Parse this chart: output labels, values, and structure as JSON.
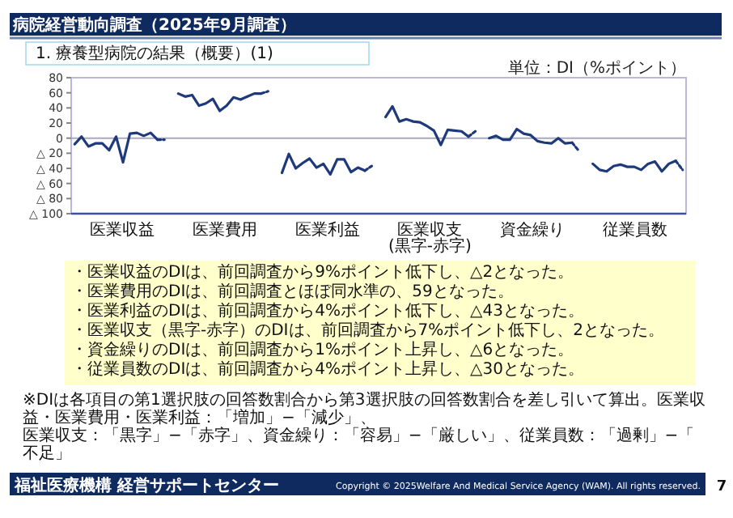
{
  "chart_data": [
    {
      "type": "line",
      "title": "病院経営動向調査（2025年9月調査）",
      "subtitle": "1. 療養型病院の結果（概要）(1)",
      "annotations": [
        "単位：DI（%ポイント）",
        "医業収益",
        "医業費用",
        "医業利益",
        "医業収支\n(黒字-赤字)",
        "資金繰り",
        "従業員数"
      ],
      "categories": [
        null,
        null,
        null,
        null,
        null,
        null,
        null,
        null,
        null,
        null,
        null,
        null,
        null,
        null,
        null,
        null,
        null,
        null,
        null,
        null,
        null,
        null,
        null,
        null,
        null,
        null,
        null,
        null,
        null,
        null,
        null,
        null,
        null,
        null,
        null,
        null,
        null,
        null,
        null,
        null,
        null,
        null,
        null,
        null,
        null,
        null,
        null,
        null,
        null,
        null,
        null,
        null,
        null,
        null,
        null,
        null,
        null,
        null,
        null,
        null,
        null,
        null,
        null,
        null,
        null,
        null,
        null,
        null,
        null,
        null,
        null,
        null,
        null,
        null,
        null,
        null,
        null,
        null,
        null,
        null,
        null,
        null,
        null,
        null,
        null,
        null,
        null,
        null,
        null
      ],
      "ylim": [
        -100,
        80
      ],
      "yticks": [
        {
          "value": -100,
          "label": "△ 100"
        },
        {
          "value": -80,
          "label": "△ 80"
        },
        {
          "value": -60,
          "label": "△ 60"
        },
        {
          "value": -40,
          "label": "△ 40"
        },
        {
          "value": -20,
          "label": "△ 20"
        },
        0,
        20,
        40,
        60,
        80
      ],
      "tick_labels": "y",
      "ref_lines": [
        {
          "axis": "y",
          "value": 0,
          "color": "#a8a8c0"
        }
      ],
      "series": [
        {
          "color": "#1f3a7a",
          "values": [
            -8,
            2,
            -11,
            -7,
            -7,
            -16,
            2,
            -32,
            6,
            7,
            3,
            7,
            -2,
            null,
            null,
            null,
            null,
            null,
            null,
            null,
            null,
            null,
            null,
            null,
            null,
            null,
            null,
            null,
            null,
            null,
            null,
            null,
            null,
            null,
            null,
            null,
            null,
            null,
            null,
            null,
            null,
            null,
            null,
            null,
            null,
            null,
            null,
            null,
            null,
            null,
            null,
            null,
            null,
            null,
            null,
            null,
            null,
            null,
            null,
            null,
            null,
            null,
            null,
            null,
            null,
            null,
            null,
            null,
            null,
            null,
            null,
            null,
            null,
            null,
            null,
            null,
            null,
            null,
            null,
            null,
            null,
            null,
            null,
            null,
            null,
            null,
            null,
            null,
            null
          ]
        },
        {
          "color": "#1f3a7a",
          "line_style": "dashed",
          "values": [
            null,
            null,
            null,
            null,
            null,
            null,
            null,
            null,
            null,
            null,
            null,
            null,
            -2,
            -2,
            null,
            null,
            null,
            null,
            null,
            null,
            null,
            null,
            null,
            null,
            null,
            null,
            null,
            null,
            null,
            null,
            null,
            null,
            null,
            null,
            null,
            null,
            null,
            null,
            null,
            null,
            null,
            null,
            null,
            null,
            null,
            null,
            null,
            null,
            null,
            null,
            null,
            null,
            null,
            null,
            null,
            null,
            null,
            null,
            null,
            null,
            null,
            null,
            null,
            null,
            null,
            null,
            null,
            null,
            null,
            null,
            null,
            null,
            null,
            null,
            null,
            null,
            null,
            null,
            null,
            null,
            null,
            null,
            null,
            null,
            null,
            null,
            null,
            null,
            null
          ]
        },
        {
          "color": "#1f3a7a",
          "values": [
            null,
            null,
            null,
            null,
            null,
            null,
            null,
            null,
            null,
            null,
            null,
            null,
            null,
            null,
            null,
            59,
            55,
            57,
            43,
            46,
            52,
            36,
            43,
            54,
            51,
            55,
            59,
            59,
            null,
            null,
            null,
            null,
            null,
            null,
            null,
            null,
            null,
            null,
            null,
            null,
            null,
            null,
            null,
            null,
            null,
            null,
            null,
            null,
            null,
            null,
            null,
            null,
            null,
            null,
            null,
            null,
            null,
            null,
            null,
            null,
            null,
            null,
            null,
            null,
            null,
            null,
            null,
            null,
            null,
            null,
            null,
            null,
            null,
            null,
            null,
            null,
            null,
            null,
            null,
            null,
            null,
            null,
            null,
            null,
            null,
            null,
            null,
            null,
            null
          ]
        },
        {
          "color": "#1f3a7a",
          "line_style": "dashed",
          "values": [
            null,
            null,
            null,
            null,
            null,
            null,
            null,
            null,
            null,
            null,
            null,
            null,
            null,
            null,
            null,
            null,
            null,
            null,
            null,
            null,
            null,
            null,
            null,
            null,
            null,
            null,
            null,
            59,
            62,
            null,
            null,
            null,
            null,
            null,
            null,
            null,
            null,
            null,
            null,
            null,
            null,
            null,
            null,
            null,
            null,
            null,
            null,
            null,
            null,
            null,
            null,
            null,
            null,
            null,
            null,
            null,
            null,
            null,
            null,
            null,
            null,
            null,
            null,
            null,
            null,
            null,
            null,
            null,
            null,
            null,
            null,
            null,
            null,
            null,
            null,
            null,
            null,
            null,
            null,
            null,
            null,
            null,
            null,
            null,
            null,
            null,
            null,
            null,
            null
          ]
        },
        {
          "color": "#1f3a7a",
          "values": [
            null,
            null,
            null,
            null,
            null,
            null,
            null,
            null,
            null,
            null,
            null,
            null,
            null,
            null,
            null,
            null,
            null,
            null,
            null,
            null,
            null,
            null,
            null,
            null,
            null,
            null,
            null,
            null,
            null,
            null,
            -46,
            -21,
            -40,
            -33,
            -27,
            -39,
            -34,
            -48,
            -28,
            -28,
            -45,
            -39,
            -43,
            null,
            null,
            null,
            null,
            null,
            null,
            null,
            null,
            null,
            null,
            null,
            null,
            null,
            null,
            null,
            null,
            null,
            null,
            null,
            null,
            null,
            null,
            null,
            null,
            null,
            null,
            null,
            null,
            null,
            null,
            null,
            null,
            null,
            null,
            null,
            null,
            null,
            null,
            null,
            null,
            null,
            null,
            null,
            null,
            null,
            null
          ]
        },
        {
          "color": "#1f3a7a",
          "line_style": "dashed",
          "values": [
            null,
            null,
            null,
            null,
            null,
            null,
            null,
            null,
            null,
            null,
            null,
            null,
            null,
            null,
            null,
            null,
            null,
            null,
            null,
            null,
            null,
            null,
            null,
            null,
            null,
            null,
            null,
            null,
            null,
            null,
            null,
            null,
            null,
            null,
            null,
            null,
            null,
            null,
            null,
            null,
            null,
            null,
            -43,
            -37,
            null,
            null,
            null,
            null,
            null,
            null,
            null,
            null,
            null,
            null,
            null,
            null,
            null,
            null,
            null,
            null,
            null,
            null,
            null,
            null,
            null,
            null,
            null,
            null,
            null,
            null,
            null,
            null,
            null,
            null,
            null,
            null,
            null,
            null,
            null,
            null,
            null,
            null,
            null,
            null,
            null,
            null,
            null,
            null,
            null
          ]
        },
        {
          "color": "#1f3a7a",
          "values": [
            null,
            null,
            null,
            null,
            null,
            null,
            null,
            null,
            null,
            null,
            null,
            null,
            null,
            null,
            null,
            null,
            null,
            null,
            null,
            null,
            null,
            null,
            null,
            null,
            null,
            null,
            null,
            null,
            null,
            null,
            null,
            null,
            null,
            null,
            null,
            null,
            null,
            null,
            null,
            null,
            null,
            null,
            null,
            null,
            null,
            28,
            42,
            22,
            25,
            22,
            21,
            16,
            10,
            -9,
            11,
            10,
            9,
            2,
            null,
            null,
            null,
            null,
            null,
            null,
            null,
            null,
            null,
            null,
            null,
            null,
            null,
            null,
            null,
            null,
            null,
            null,
            null,
            null,
            null,
            null,
            null,
            null,
            null,
            null,
            null,
            null,
            null,
            null,
            null
          ]
        },
        {
          "color": "#1f3a7a",
          "line_style": "dashed",
          "values": [
            null,
            null,
            null,
            null,
            null,
            null,
            null,
            null,
            null,
            null,
            null,
            null,
            null,
            null,
            null,
            null,
            null,
            null,
            null,
            null,
            null,
            null,
            null,
            null,
            null,
            null,
            null,
            null,
            null,
            null,
            null,
            null,
            null,
            null,
            null,
            null,
            null,
            null,
            null,
            null,
            null,
            null,
            null,
            null,
            null,
            null,
            null,
            null,
            null,
            null,
            null,
            null,
            null,
            null,
            null,
            null,
            null,
            2,
            9,
            null,
            null,
            null,
            null,
            null,
            null,
            null,
            null,
            null,
            null,
            null,
            null,
            null,
            null,
            null,
            null,
            null,
            null,
            null,
            null,
            null,
            null,
            null,
            null,
            null,
            null,
            null,
            null,
            null,
            null
          ]
        },
        {
          "color": "#1f3a7a",
          "values": [
            null,
            null,
            null,
            null,
            null,
            null,
            null,
            null,
            null,
            null,
            null,
            null,
            null,
            null,
            null,
            null,
            null,
            null,
            null,
            null,
            null,
            null,
            null,
            null,
            null,
            null,
            null,
            null,
            null,
            null,
            null,
            null,
            null,
            null,
            null,
            null,
            null,
            null,
            null,
            null,
            null,
            null,
            null,
            null,
            null,
            null,
            null,
            null,
            null,
            null,
            null,
            null,
            null,
            null,
            null,
            null,
            null,
            null,
            null,
            null,
            0,
            3,
            -2,
            -2,
            12,
            6,
            4,
            -4,
            -6,
            -7,
            0,
            -7,
            -6,
            null,
            null,
            null,
            null,
            null,
            null,
            null,
            null,
            null,
            null,
            null,
            null,
            null,
            null,
            null,
            null
          ]
        },
        {
          "color": "#1f3a7a",
          "line_style": "dashed",
          "values": [
            null,
            null,
            null,
            null,
            null,
            null,
            null,
            null,
            null,
            null,
            null,
            null,
            null,
            null,
            null,
            null,
            null,
            null,
            null,
            null,
            null,
            null,
            null,
            null,
            null,
            null,
            null,
            null,
            null,
            null,
            null,
            null,
            null,
            null,
            null,
            null,
            null,
            null,
            null,
            null,
            null,
            null,
            null,
            null,
            null,
            null,
            null,
            null,
            null,
            null,
            null,
            null,
            null,
            null,
            null,
            null,
            null,
            null,
            null,
            null,
            null,
            null,
            null,
            null,
            null,
            null,
            null,
            null,
            null,
            null,
            null,
            null,
            -6,
            -17,
            null,
            null,
            null,
            null,
            null,
            null,
            null,
            null,
            null,
            null,
            null,
            null,
            null,
            null,
            null
          ]
        },
        {
          "color": "#1f3a7a",
          "values": [
            null,
            null,
            null,
            null,
            null,
            null,
            null,
            null,
            null,
            null,
            null,
            null,
            null,
            null,
            null,
            null,
            null,
            null,
            null,
            null,
            null,
            null,
            null,
            null,
            null,
            null,
            null,
            null,
            null,
            null,
            null,
            null,
            null,
            null,
            null,
            null,
            null,
            null,
            null,
            null,
            null,
            null,
            null,
            null,
            null,
            null,
            null,
            null,
            null,
            null,
            null,
            null,
            null,
            null,
            null,
            null,
            null,
            null,
            null,
            null,
            null,
            null,
            null,
            null,
            null,
            null,
            null,
            null,
            null,
            null,
            null,
            null,
            null,
            null,
            null,
            -34,
            -42,
            -44,
            -37,
            -35,
            -38,
            -38,
            -42,
            -34,
            -31,
            -44,
            -34,
            -30,
            null
          ]
        },
        {
          "color": "#1f3a7a",
          "line_style": "dashed",
          "values": [
            null,
            null,
            null,
            null,
            null,
            null,
            null,
            null,
            null,
            null,
            null,
            null,
            null,
            null,
            null,
            null,
            null,
            null,
            null,
            null,
            null,
            null,
            null,
            null,
            null,
            null,
            null,
            null,
            null,
            null,
            null,
            null,
            null,
            null,
            null,
            null,
            null,
            null,
            null,
            null,
            null,
            null,
            null,
            null,
            null,
            null,
            null,
            null,
            null,
            null,
            null,
            null,
            null,
            null,
            null,
            null,
            null,
            null,
            null,
            null,
            null,
            null,
            null,
            null,
            null,
            null,
            null,
            null,
            null,
            null,
            null,
            null,
            null,
            null,
            null,
            null,
            null,
            null,
            null,
            null,
            null,
            null,
            null,
            null,
            null,
            null,
            null,
            -30,
            -42
          ]
        }
      ]
    },
    {
      "type": "other",
      "annotations": [
        "・医業収益のDIは、前回調査から9%ポイント低下し、△2となった。",
        "・医業費用のDIは、前回調査とほぼ同水準の、59となった。",
        "・医業利益のDIは、前回調査から4%ポイント低下し、△43となった。",
        "・医業収支（黒字-赤字）のDIは、前回調査から7%ポイント低下し、2となった。",
        "・資金繰りのDIは、前回調査から1%ポイント上昇し、△6となった。",
        "・従業員数のDIは、前回調査から4%ポイント上昇し、△30となった。",
        "※DIは各項目の第1選択肢の回答数割合から第3選択肢の回答数割合を差し引いて算出。医業収益・医業費用・医業利益：「増加」−「減少」、",
        "医業収支：「黒字」−「赤字」、資金繰り：「容易」−「厳しい」、従業員数：「過剰」−「不足」",
        "福祉医療機構 経営サポートセンター",
        "Copyright © 2025Welfare And Medical Service Agency (WAM). All rights reserved.",
        "7"
      ]
    }
  ]
}
